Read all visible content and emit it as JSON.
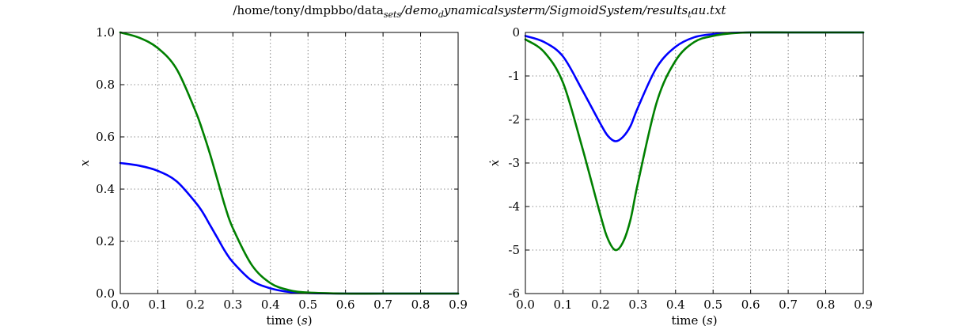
{
  "figure": {
    "title_plain": "/home/tony/dmpbbo/data",
    "title_italic_sub1": "sets",
    "title_italic_mid": "/demo",
    "title_italic_sub2": "d",
    "title_italic_rest": "ynamicalsysterm/SigmoidSystem/results",
    "title_italic_sub3": "t",
    "title_italic_end": "au.txt"
  },
  "chart_data": [
    {
      "type": "line",
      "xlabel": "time (s)",
      "ylabel": "x",
      "xlim": [
        0.0,
        0.9
      ],
      "ylim": [
        0.0,
        1.0
      ],
      "grid": true,
      "xticks": [
        "0.0",
        "0.1",
        "0.2",
        "0.3",
        "0.4",
        "0.5",
        "0.6",
        "0.7",
        "0.8",
        "0.9"
      ],
      "yticks": [
        "0.0",
        "0.2",
        "0.4",
        "0.6",
        "0.8",
        "1.0"
      ],
      "x": [
        0.0,
        0.05,
        0.1,
        0.15,
        0.2,
        0.22,
        0.24,
        0.26,
        0.28,
        0.3,
        0.35,
        0.4,
        0.45,
        0.5,
        0.6,
        0.7,
        0.8,
        0.9
      ],
      "series": [
        {
          "color": "#0000ff",
          "values": [
            0.5,
            0.49,
            0.47,
            0.43,
            0.35,
            0.31,
            0.26,
            0.21,
            0.16,
            0.12,
            0.05,
            0.02,
            0.006,
            0.002,
            0.0,
            0.0,
            0.0,
            0.0
          ]
        },
        {
          "color": "#008000",
          "values": [
            1.0,
            0.98,
            0.94,
            0.86,
            0.7,
            0.62,
            0.53,
            0.43,
            0.33,
            0.25,
            0.11,
            0.04,
            0.013,
            0.004,
            0.0,
            0.0,
            0.0,
            0.0
          ]
        }
      ]
    },
    {
      "type": "line",
      "xlabel": "time (s)",
      "ylabel": "ẋ",
      "xlim": [
        0.0,
        0.9
      ],
      "ylim": [
        -6,
        0
      ],
      "grid": true,
      "xticks": [
        "0.0",
        "0.1",
        "0.2",
        "0.3",
        "0.4",
        "0.5",
        "0.6",
        "0.7",
        "0.8",
        "0.9"
      ],
      "yticks": [
        "-6",
        "-5",
        "-4",
        "-3",
        "-2",
        "-1",
        "0"
      ],
      "x": [
        0.0,
        0.05,
        0.1,
        0.15,
        0.2,
        0.22,
        0.24,
        0.26,
        0.28,
        0.3,
        0.35,
        0.4,
        0.45,
        0.5,
        0.55,
        0.6,
        0.7,
        0.8,
        0.9
      ],
      "series": [
        {
          "color": "#0000ff",
          "values": [
            -0.08,
            -0.22,
            -0.55,
            -1.3,
            -2.1,
            -2.38,
            -2.5,
            -2.4,
            -2.15,
            -1.72,
            -0.8,
            -0.33,
            -0.11,
            -0.04,
            -0.01,
            0.0,
            0.0,
            0.0,
            0.0
          ]
        },
        {
          "color": "#008000",
          "values": [
            -0.16,
            -0.45,
            -1.15,
            -2.6,
            -4.2,
            -4.75,
            -5.0,
            -4.82,
            -4.3,
            -3.45,
            -1.6,
            -0.65,
            -0.22,
            -0.08,
            -0.02,
            0.0,
            0.0,
            0.0,
            0.0
          ]
        }
      ]
    }
  ]
}
